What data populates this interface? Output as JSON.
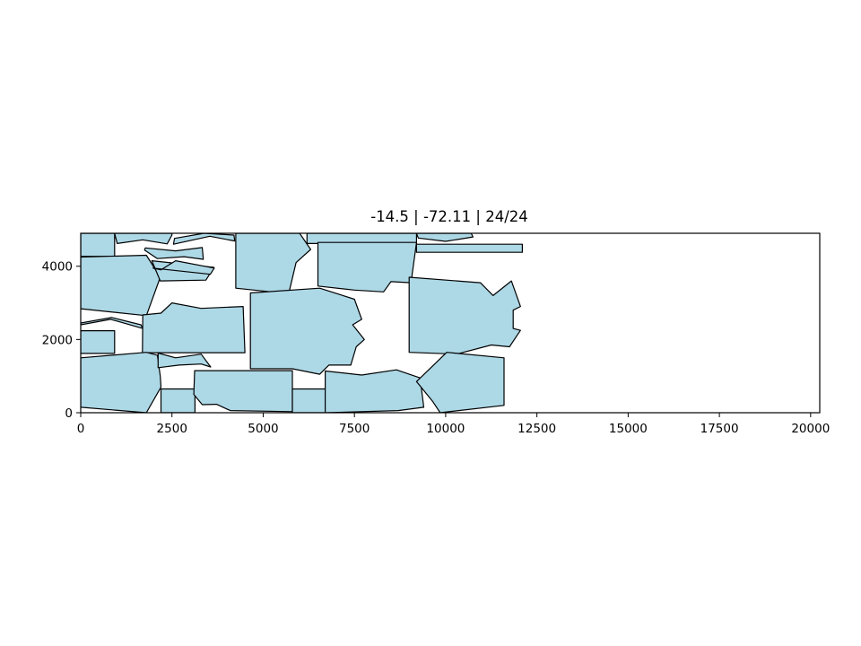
{
  "chart_data": {
    "type": "polygon",
    "title": "-14.5 | -72.11 | 24/24",
    "xlim": [
      0,
      20250
    ],
    "ylim": [
      0,
      4900
    ],
    "x_ticks": [
      0,
      2500,
      5000,
      7500,
      10000,
      12500,
      15000,
      17500,
      20000
    ],
    "y_ticks": [
      0,
      2000,
      4000
    ],
    "fill_color": "#add8e6",
    "edge_color": "#000000",
    "polygons": [
      [
        [
          0,
          4270
        ],
        [
          930,
          4270
        ],
        [
          930,
          4900
        ],
        [
          0,
          4900
        ]
      ],
      [
        [
          930,
          4900
        ],
        [
          2500,
          4900
        ],
        [
          2500,
          4850
        ],
        [
          2370,
          4610
        ],
        [
          1700,
          4720
        ],
        [
          1000,
          4620
        ]
      ],
      [
        [
          2570,
          4760
        ],
        [
          3380,
          4900
        ],
        [
          4200,
          4850
        ],
        [
          4220,
          4690
        ],
        [
          3540,
          4820
        ],
        [
          2540,
          4600
        ]
      ],
      [
        [
          4250,
          4900
        ],
        [
          6000,
          4900
        ],
        [
          6300,
          4460
        ],
        [
          5900,
          4100
        ],
        [
          5700,
          3250
        ],
        [
          4250,
          3400
        ]
      ],
      [
        [
          6200,
          4900
        ],
        [
          9200,
          4900
        ],
        [
          9200,
          4620
        ],
        [
          6200,
          4620
        ]
      ],
      [
        [
          9200,
          4900
        ],
        [
          10700,
          4900
        ],
        [
          10750,
          4800
        ],
        [
          10000,
          4680
        ],
        [
          9250,
          4770
        ]
      ],
      [
        [
          0,
          4250
        ],
        [
          1800,
          4300
        ],
        [
          2180,
          3700
        ],
        [
          1800,
          2650
        ],
        [
          0,
          2840
        ]
      ],
      [
        [
          1750,
          4440
        ],
        [
          2100,
          4210
        ],
        [
          2830,
          4260
        ],
        [
          3360,
          4190
        ],
        [
          3330,
          4510
        ],
        [
          2600,
          4420
        ],
        [
          1770,
          4500
        ]
      ],
      [
        [
          9200,
          4600
        ],
        [
          12100,
          4600
        ],
        [
          12100,
          4380
        ],
        [
          9200,
          4380
        ]
      ],
      [
        [
          1950,
          4150
        ],
        [
          3650,
          3970
        ],
        [
          3430,
          3620
        ],
        [
          2180,
          3600
        ]
      ],
      [
        [
          1980,
          3950
        ],
        [
          3550,
          3780
        ],
        [
          3660,
          3950
        ],
        [
          2600,
          4150
        ],
        [
          2200,
          3900
        ]
      ],
      [
        [
          6500,
          4650
        ],
        [
          9200,
          4650
        ],
        [
          9050,
          3550
        ],
        [
          8500,
          3580
        ],
        [
          8300,
          3300
        ],
        [
          7500,
          3350
        ],
        [
          6500,
          3460
        ]
      ],
      [
        [
          0,
          2400
        ],
        [
          820,
          2550
        ],
        [
          1700,
          2300
        ],
        [
          1650,
          2400
        ],
        [
          850,
          2600
        ],
        [
          0,
          2450
        ]
      ],
      [
        [
          0,
          2240
        ],
        [
          930,
          2240
        ],
        [
          930,
          1620
        ],
        [
          0,
          1620
        ]
      ],
      [
        [
          2200,
          2720
        ],
        [
          1700,
          2670
        ],
        [
          1690,
          1640
        ],
        [
          4500,
          1640
        ],
        [
          4450,
          2900
        ],
        [
          3300,
          2850
        ],
        [
          2500,
          3000
        ]
      ],
      [
        [
          4650,
          3270
        ],
        [
          6550,
          3400
        ],
        [
          6870,
          3300
        ],
        [
          7500,
          3100
        ],
        [
          7700,
          2550
        ],
        [
          7450,
          2400
        ],
        [
          7770,
          2000
        ],
        [
          7550,
          1800
        ],
        [
          7400,
          1300
        ],
        [
          6800,
          1300
        ],
        [
          6550,
          1050
        ],
        [
          5800,
          1200
        ],
        [
          4650,
          1200
        ]
      ],
      [
        [
          9000,
          3700
        ],
        [
          10950,
          3550
        ],
        [
          11300,
          3200
        ],
        [
          11800,
          3600
        ],
        [
          12050,
          2900
        ],
        [
          11850,
          2800
        ],
        [
          11850,
          2300
        ],
        [
          12050,
          2250
        ],
        [
          11750,
          1800
        ],
        [
          11250,
          1850
        ],
        [
          10300,
          1600
        ],
        [
          9000,
          1650
        ]
      ],
      [
        [
          2100,
          1570
        ],
        [
          1800,
          1650
        ],
        [
          0,
          1500
        ],
        [
          0,
          150
        ],
        [
          1800,
          0
        ],
        [
          2200,
          700
        ],
        [
          2180,
          1000
        ]
      ],
      [
        [
          2120,
          1630
        ],
        [
          2600,
          1500
        ],
        [
          3300,
          1600
        ],
        [
          3560,
          1250
        ],
        [
          3300,
          1330
        ],
        [
          2700,
          1300
        ],
        [
          2120,
          1230
        ]
      ],
      [
        [
          2200,
          650
        ],
        [
          3130,
          650
        ],
        [
          3130,
          0
        ],
        [
          2200,
          0
        ]
      ],
      [
        [
          3120,
          1150
        ],
        [
          5800,
          1150
        ],
        [
          5800,
          30
        ],
        [
          4100,
          60
        ],
        [
          3720,
          230
        ],
        [
          3330,
          220
        ],
        [
          3100,
          500
        ]
      ],
      [
        [
          5800,
          650
        ],
        [
          6700,
          650
        ],
        [
          6700,
          0
        ],
        [
          5800,
          0
        ]
      ],
      [
        [
          6700,
          1140
        ],
        [
          7700,
          1030
        ],
        [
          8650,
          1170
        ],
        [
          9300,
          950
        ],
        [
          9400,
          150
        ],
        [
          8700,
          60
        ],
        [
          6700,
          0
        ]
      ],
      [
        [
          10030,
          1650
        ],
        [
          11600,
          1500
        ],
        [
          11600,
          200
        ],
        [
          9850,
          0
        ],
        [
          9650,
          300
        ],
        [
          9200,
          850
        ]
      ]
    ]
  }
}
